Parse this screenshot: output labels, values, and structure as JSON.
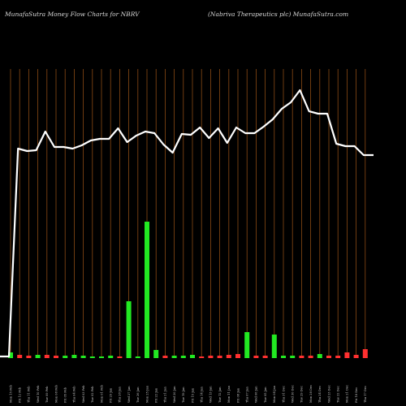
{
  "header": {
    "left": "MunafaSutra  Money Flow  Charts for NBRV",
    "right": "(Nabriva  Therapeutics plc) MunafaSutra.com"
  },
  "colors": {
    "background": "#000000",
    "gridline": "#8a4a14",
    "line": "#ffffff",
    "up_bar": "#22e822",
    "down_bar": "#ff3030"
  },
  "chart_data": {
    "type": "bar+line",
    "categories": [
      "Mon 15 Feb",
      "Fri 12 Feb",
      "Thu 11 Feb",
      "Wed 10 Feb",
      "Tue 09 Feb",
      "Mon 08 Feb",
      "Fri 05 Feb",
      "Thu 04 Feb",
      "Wed 03 Feb",
      "Tue 02 Feb",
      "Mon 01 Feb",
      "Fri 29 Jan",
      "Thu 28 Jan",
      "Wed 27 Jan",
      "Tue 26 Jan",
      "Mon 25 Jan",
      "Fri 22 Jan",
      "Thu 21 Jan",
      "Wed 20 Jan",
      "Tue 19 Jan",
      "Fri 15 Jan",
      "Thu 14 Jan",
      "Wed 13 Jan",
      "Tue 12 Jan",
      "Mon 11 Jan",
      "Fri 08 Jan",
      "Thu 07 Jan",
      "Wed 06 Jan",
      "Tue 05 Jan",
      "Mon 04 Jan",
      "Thu 31 Dec",
      "Wed 30 Dec",
      "Tue 29 Dec",
      "Mon 28 Dec",
      "Thu 24 Dec",
      "Wed 23 Dec",
      "Tue 22 Dec",
      "Mon 21 Dec",
      "Fri 18 Dec",
      "Thu 17 Dec"
    ],
    "bars": [
      {
        "v": 7,
        "dir": "up"
      },
      {
        "v": 4,
        "dir": "down"
      },
      {
        "v": 3,
        "dir": "down"
      },
      {
        "v": 4,
        "dir": "up"
      },
      {
        "v": 4,
        "dir": "down"
      },
      {
        "v": 3,
        "dir": "down"
      },
      {
        "v": 3,
        "dir": "up"
      },
      {
        "v": 4,
        "dir": "up"
      },
      {
        "v": 3,
        "dir": "up"
      },
      {
        "v": 2,
        "dir": "up"
      },
      {
        "v": 2,
        "dir": "up"
      },
      {
        "v": 3,
        "dir": "up"
      },
      {
        "v": 2,
        "dir": "down"
      },
      {
        "v": 70,
        "dir": "up"
      },
      {
        "v": 2,
        "dir": "up"
      },
      {
        "v": 168,
        "dir": "up"
      },
      {
        "v": 10,
        "dir": "up"
      },
      {
        "v": 3,
        "dir": "down"
      },
      {
        "v": 3,
        "dir": "up"
      },
      {
        "v": 3,
        "dir": "up"
      },
      {
        "v": 4,
        "dir": "up"
      },
      {
        "v": 2,
        "dir": "down"
      },
      {
        "v": 3,
        "dir": "down"
      },
      {
        "v": 3,
        "dir": "down"
      },
      {
        "v": 4,
        "dir": "down"
      },
      {
        "v": 5,
        "dir": "down"
      },
      {
        "v": 32,
        "dir": "up"
      },
      {
        "v": 3,
        "dir": "down"
      },
      {
        "v": 3,
        "dir": "down"
      },
      {
        "v": 29,
        "dir": "up"
      },
      {
        "v": 3,
        "dir": "up"
      },
      {
        "v": 3,
        "dir": "up"
      },
      {
        "v": 3,
        "dir": "down"
      },
      {
        "v": 3,
        "dir": "down"
      },
      {
        "v": 5,
        "dir": "up"
      },
      {
        "v": 3,
        "dir": "down"
      },
      {
        "v": 3,
        "dir": "down"
      },
      {
        "v": 7,
        "dir": "down"
      },
      {
        "v": 4,
        "dir": "down"
      },
      {
        "v": 11,
        "dir": "down"
      }
    ],
    "line": [
      2,
      258,
      255,
      256,
      279,
      260,
      260,
      258,
      262,
      268,
      270,
      270,
      283,
      266,
      274,
      279,
      277,
      263,
      253,
      276,
      275,
      284,
      271,
      283,
      265,
      284,
      277,
      277,
      285,
      294,
      307,
      315,
      330,
      304,
      301,
      301,
      264,
      261,
      261,
      250
    ],
    "line_x_start": 0,
    "line_x_end": 460,
    "line_start": 2,
    "line_end": 250,
    "bar_max": 170,
    "line_max": 330,
    "xlabel": "",
    "ylabel": ""
  }
}
